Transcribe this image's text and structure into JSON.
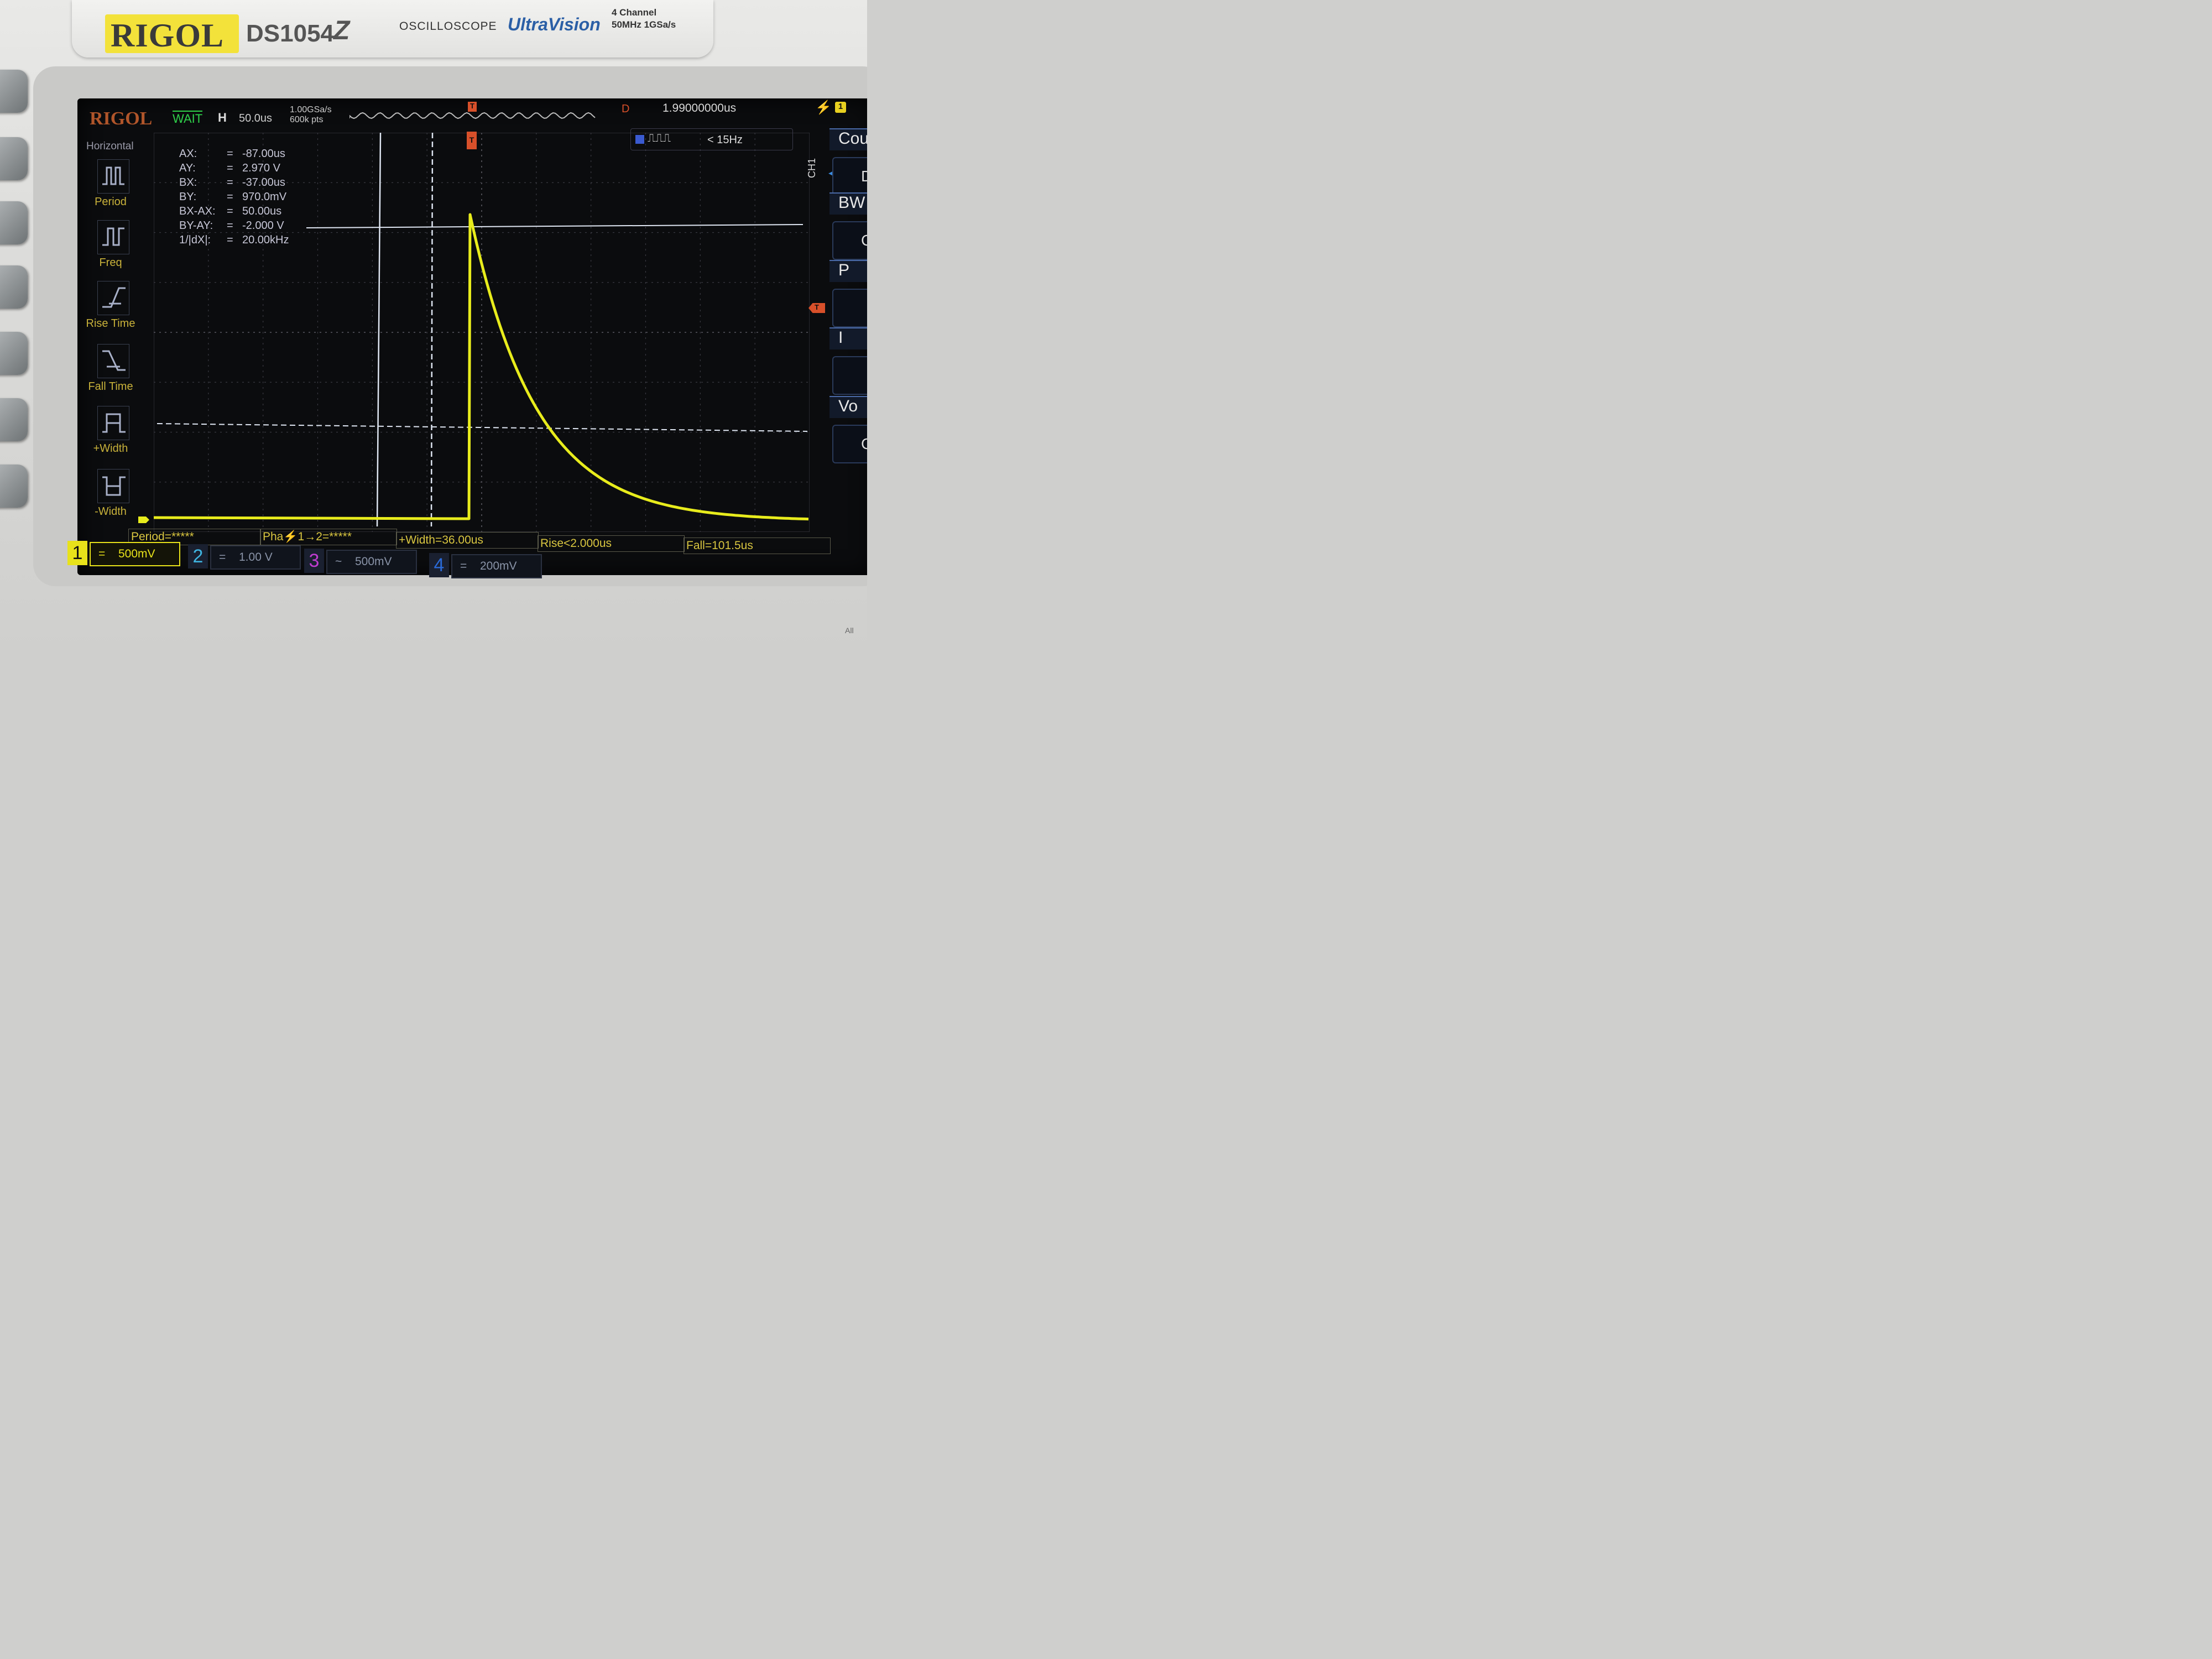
{
  "device": {
    "brand": "RIGOL",
    "model": "DS1054",
    "model_suffix": "Z",
    "type_label": "OSCILLOSCOPE",
    "series": "UltraVision",
    "channels_label": "4 Channel",
    "spec_label": "50MHz  1GSa/s"
  },
  "status_bar": {
    "logo": "RIGOL",
    "run_state": "WAIT",
    "timebase_label": "H",
    "timebase_value": "50.0us",
    "sample_rate": "1.00GSa/s",
    "memory_depth": "600k pts",
    "delay_label": "D",
    "delay_value": "1.99000000us",
    "trigger_marker": "T",
    "trigger_channel": "1"
  },
  "left_menu": {
    "title": "Horizontal",
    "items": [
      {
        "label": "Period",
        "icon": "period-icon"
      },
      {
        "label": "Freq",
        "icon": "frequency-icon"
      },
      {
        "label": "Rise Time",
        "icon": "rise-time-icon"
      },
      {
        "label": "Fall Time",
        "icon": "fall-time-icon"
      },
      {
        "label": "+Width",
        "icon": "positive-width-icon"
      },
      {
        "label": "-Width",
        "icon": "negative-width-icon"
      }
    ]
  },
  "cursor_readout": [
    {
      "name": "AX:",
      "eq": "=",
      "value": "-87.00us"
    },
    {
      "name": "AY:",
      "eq": "=",
      "value": "2.970 V"
    },
    {
      "name": "BX:",
      "eq": "=",
      "value": "-37.00us"
    },
    {
      "name": "BY:",
      "eq": "=",
      "value": "970.0mV"
    },
    {
      "name": "BX-AX:",
      "eq": "=",
      "value": "50.00us"
    },
    {
      "name": "BY-AY:",
      "eq": "=",
      "value": "-2.000 V"
    },
    {
      "name": "1/|dX|:",
      "eq": "=",
      "value": "20.00kHz"
    }
  ],
  "counter": {
    "channel": "1",
    "value": "< 15Hz"
  },
  "measurements": [
    "Period=*****",
    "Pha⚡1→2=*****",
    "+Width=36.00us",
    "Rise<2.000us",
    "Fall=101.5us"
  ],
  "channels": [
    {
      "num": "1",
      "coupling": "=",
      "scale": "500mV",
      "color": "#e8e21a",
      "active": true
    },
    {
      "num": "2",
      "coupling": "=",
      "scale": "1.00 V",
      "color": "#3fb4e0",
      "active": false
    },
    {
      "num": "3",
      "coupling": "~",
      "scale": "500mV",
      "color": "#c03cd0",
      "active": false
    },
    {
      "num": "4",
      "coupling": "=",
      "scale": "200mV",
      "color": "#2a6ad8",
      "active": false
    }
  ],
  "right_menu": {
    "side_label": "CH1",
    "items": [
      "Cou",
      "BW",
      "P",
      "I",
      "Vo"
    ],
    "values": [
      "D",
      "C",
      "",
      "",
      "C"
    ]
  },
  "trace": {
    "color": "#e8ec1c",
    "kind": "exponential decay pulse",
    "fall_time_label": "Fall=101.5us"
  }
}
